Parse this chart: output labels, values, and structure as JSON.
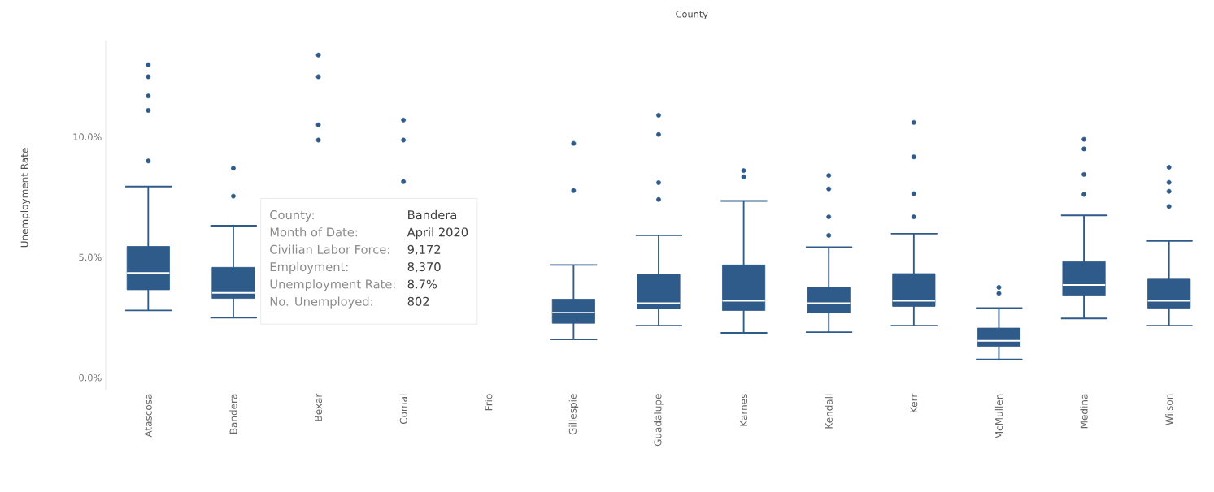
{
  "chart_data": {
    "type": "box",
    "xlabel": "County",
    "ylabel": "Unemployment Rate",
    "categories": [
      "Atascosa",
      "Bandera",
      "Bexar",
      "Comal",
      "Frio",
      "Gillespie",
      "Guadalupe",
      "Karnes",
      "Kendall",
      "Kerr",
      "McMullen",
      "Medina",
      "Wilson"
    ],
    "color": "#2f5b8a",
    "boxes": [
      {
        "low": 2.79,
        "q1": 3.65,
        "median": 4.35,
        "q3": 5.45,
        "high": 7.94,
        "outliers": [
          13.0,
          12.5,
          11.7,
          11.1,
          9.0
        ]
      },
      {
        "low": 2.49,
        "q1": 3.29,
        "median": 3.52,
        "q3": 4.58,
        "high": 6.31,
        "outliers": [
          8.7,
          7.54
        ]
      },
      null,
      null,
      null,
      {
        "low": 1.59,
        "q1": 2.26,
        "median": 2.7,
        "q3": 3.26,
        "high": 4.68,
        "outliers": [
          9.73,
          7.77
        ]
      },
      {
        "low": 2.16,
        "q1": 2.86,
        "median": 3.09,
        "q3": 4.29,
        "high": 5.91,
        "outliers": [
          10.9,
          10.1,
          8.1,
          7.4
        ]
      },
      {
        "low": 1.86,
        "q1": 2.79,
        "median": 3.19,
        "q3": 4.68,
        "high": 7.34,
        "outliers": [
          8.6,
          8.34
        ]
      },
      {
        "low": 1.89,
        "q1": 2.69,
        "median": 3.09,
        "q3": 3.75,
        "high": 5.42,
        "outliers": [
          8.4,
          7.84,
          6.68,
          5.91
        ]
      },
      {
        "low": 2.16,
        "q1": 2.96,
        "median": 3.19,
        "q3": 4.32,
        "high": 5.98,
        "outliers": [
          10.6,
          9.17,
          7.64,
          6.68
        ]
      },
      {
        "low": 0.76,
        "q1": 1.3,
        "median": 1.53,
        "q3": 2.06,
        "high": 2.89,
        "outliers": [
          3.75,
          3.5
        ]
      },
      {
        "low": 2.46,
        "q1": 3.42,
        "median": 3.85,
        "q3": 4.82,
        "high": 6.74,
        "outliers": [
          9.9,
          9.5,
          8.44,
          7.61
        ]
      },
      {
        "low": 2.16,
        "q1": 2.89,
        "median": 3.19,
        "q3": 4.09,
        "high": 5.68,
        "outliers": [
          8.74,
          8.11,
          7.74,
          7.11
        ]
      }
    ],
    "series": [
      {
        "type": "scatter",
        "x": [
          "Bexar",
          "Bexar",
          "Bexar",
          "Bexar",
          "Comal",
          "Comal",
          "Comal"
        ],
        "values": [
          13.4,
          12.5,
          10.5,
          9.87,
          10.7,
          9.87,
          8.14
        ],
        "color": "#2f5b8a"
      }
    ],
    "ylim": [
      -0.5,
      14
    ],
    "yticks": [
      {
        "value": 0,
        "label": "0.0%"
      },
      {
        "value": 5,
        "label": "5.0%"
      },
      {
        "value": 10,
        "label": "10.0%"
      }
    ],
    "grid": false,
    "annotations": [
      "County:",
      "Bandera",
      "Month of Date:",
      "April 2020",
      "Civilian Labor Force:",
      "9,172",
      "Employment:",
      "8,370",
      "Unemployment Rate:",
      "8.7%",
      "No. Unemployed:",
      "802"
    ]
  }
}
